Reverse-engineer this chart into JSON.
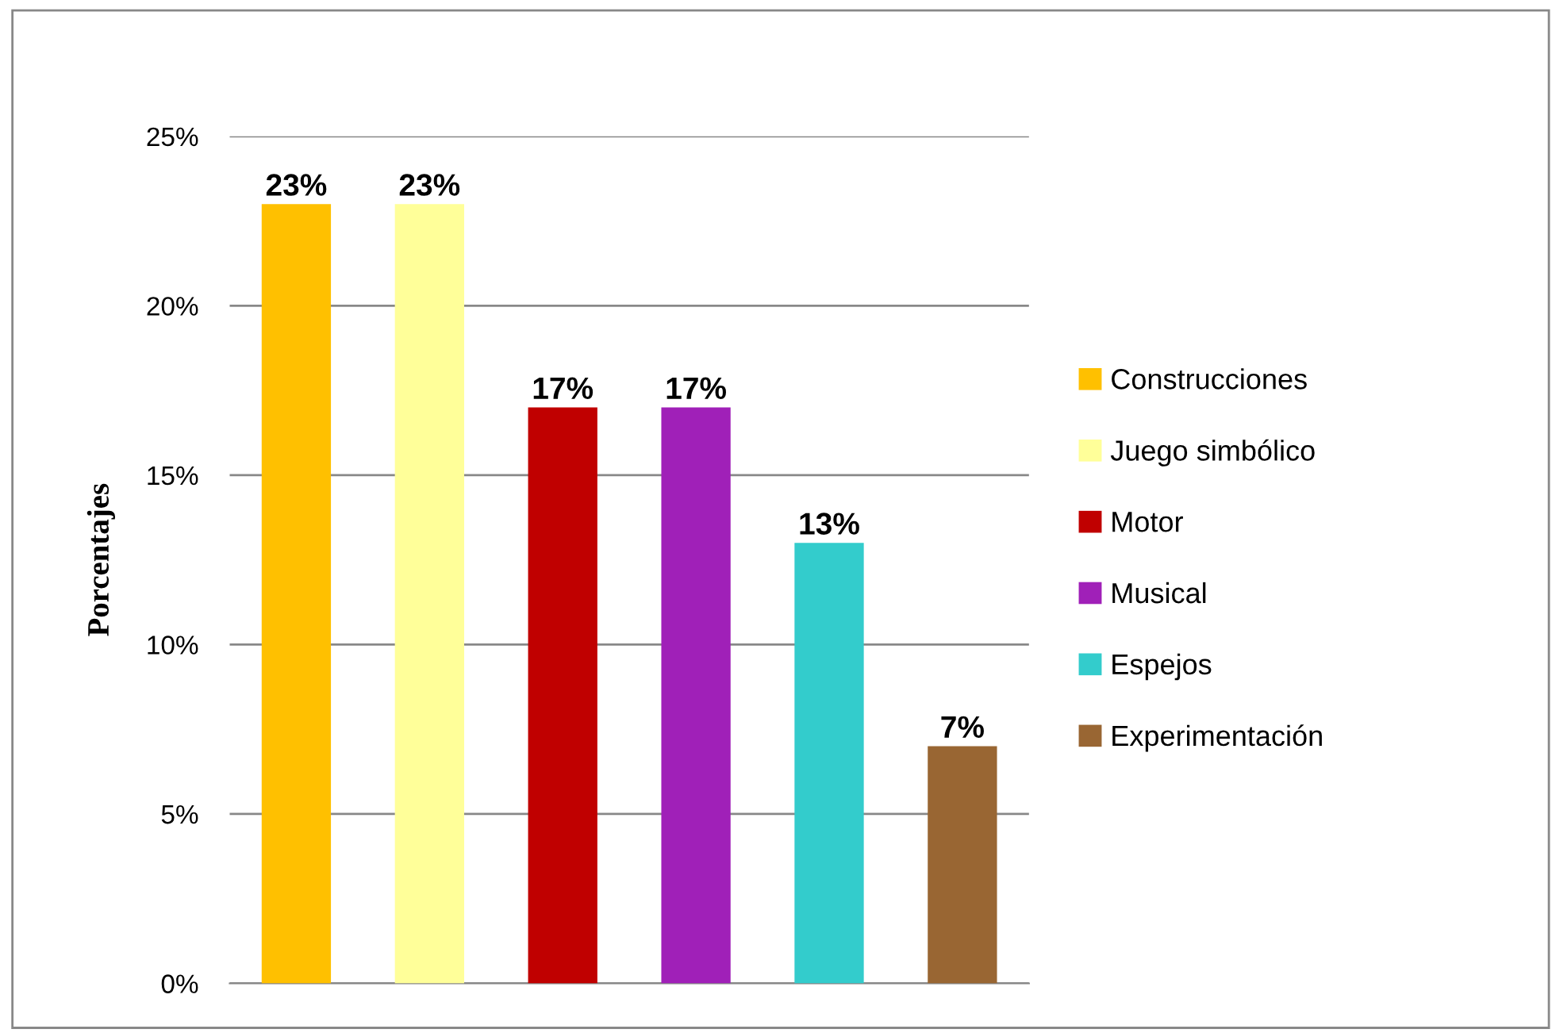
{
  "chart_data": {
    "type": "bar",
    "ylabel": "Porcentajes",
    "categories": [
      null,
      null,
      null,
      null,
      null,
      null
    ],
    "series": [
      {
        "name": "Construcciones",
        "color": "#ffc000",
        "values": [
          23,
          null,
          null,
          null,
          null,
          null
        ],
        "value_labels": [
          "23%",
          null,
          null,
          null,
          null,
          null
        ]
      },
      {
        "name": "Juego simbólico",
        "color": "#ffff99",
        "values": [
          null,
          23,
          null,
          null,
          null,
          null
        ],
        "value_labels": [
          null,
          "23%",
          null,
          null,
          null,
          null
        ]
      },
      {
        "name": "Motor",
        "color": "#c00000",
        "values": [
          null,
          null,
          17,
          null,
          null,
          null
        ],
        "value_labels": [
          null,
          null,
          "17%",
          null,
          null,
          null
        ]
      },
      {
        "name": "Musical",
        "color": "#a020b8",
        "values": [
          null,
          null,
          null,
          17,
          null,
          null
        ],
        "value_labels": [
          null,
          null,
          null,
          "17%",
          null,
          null
        ]
      },
      {
        "name": "Espejos",
        "color": "#33cccc",
        "values": [
          null,
          null,
          null,
          null,
          13,
          null
        ],
        "value_labels": [
          null,
          null,
          null,
          null,
          "13%",
          null
        ]
      },
      {
        "name": "Experimentación",
        "color": "#996633",
        "values": [
          null,
          null,
          null,
          null,
          null,
          7
        ],
        "value_labels": [
          null,
          null,
          null,
          null,
          null,
          "7%"
        ]
      }
    ],
    "ylim": [
      0,
      25
    ],
    "yticks": [
      {
        "value": 0,
        "label": "0%"
      },
      {
        "value": 5,
        "label": "5%"
      },
      {
        "value": 10,
        "label": "10%"
      },
      {
        "value": 15,
        "label": "15%"
      },
      {
        "value": 20,
        "label": "20%"
      },
      {
        "value": 25,
        "label": "25%"
      }
    ],
    "grid": "y",
    "legend": "right"
  }
}
